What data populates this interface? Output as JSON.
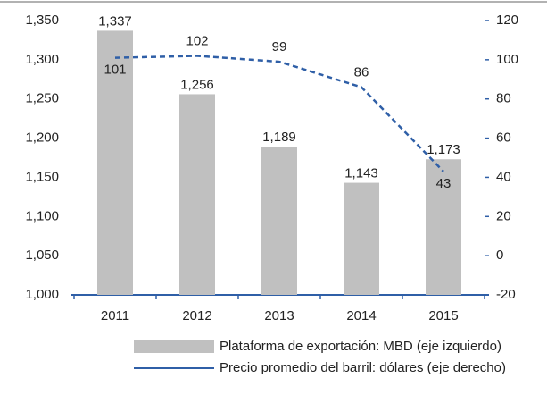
{
  "chart_data": {
    "type": "bar",
    "categories": [
      "2011",
      "2012",
      "2013",
      "2014",
      "2015"
    ],
    "series": [
      {
        "name": "Plataforma de exportación: MBD (eje izquierdo)",
        "type": "bar",
        "color": "#c0c0c0",
        "values": [
          1337,
          1256,
          1189,
          1143,
          1173
        ],
        "value_labels": [
          "1,337",
          "1,256",
          "1,189",
          "1,143",
          "1,173"
        ]
      },
      {
        "name": "Precio promedio del barril: dólares (eje derecho)",
        "type": "line",
        "axis": "y2",
        "color": "#2f5fa7",
        "values": [
          101,
          102,
          99,
          86,
          43
        ]
      }
    ],
    "ylim": [
      1000,
      1350
    ],
    "yticks": [
      {
        "value": 1000,
        "label": "1,000"
      },
      {
        "value": 1050,
        "label": "1,050"
      },
      {
        "value": 1100,
        "label": "1,100"
      },
      {
        "value": 1150,
        "label": "1,150"
      },
      {
        "value": 1200,
        "label": "1,200"
      },
      {
        "value": 1250,
        "label": "1,250"
      },
      {
        "value": 1300,
        "label": "1,300"
      },
      {
        "value": 1350,
        "label": "1,350"
      }
    ],
    "y2lim": [
      -20,
      120
    ],
    "y2ticks": [
      -20,
      0,
      20,
      40,
      60,
      80,
      100,
      120
    ],
    "axis_color": "#2f5fa7"
  }
}
